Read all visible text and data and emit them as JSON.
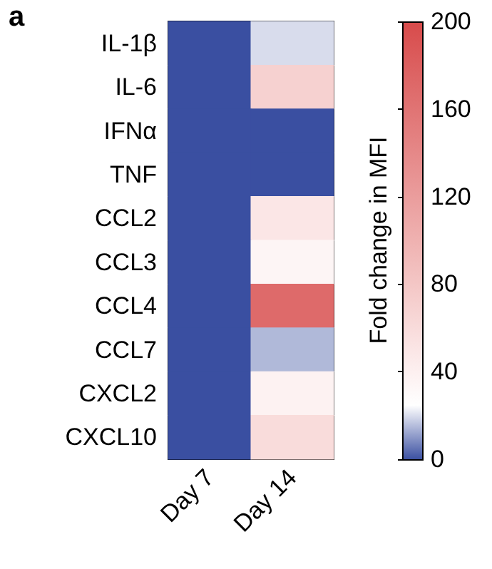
{
  "chart_data": {
    "type": "heatmap",
    "annotations": [
      "a"
    ],
    "clabel": "Fold change in MFI",
    "categories": [
      "Day 7",
      "Day 14"
    ],
    "y_categories": [
      "IL-1β",
      "IL-6",
      "IFNα",
      "TNF",
      "CCL2",
      "CCL3",
      "CCL4",
      "CCL7",
      "CXCL2",
      "CXCL10"
    ],
    "cells": [
      [
        0,
        20
      ],
      [
        0,
        70
      ],
      [
        0,
        0
      ],
      [
        0,
        0
      ],
      [
        0,
        50
      ],
      [
        0,
        35
      ],
      [
        0,
        170
      ],
      [
        0,
        15
      ],
      [
        0,
        38
      ],
      [
        0,
        60
      ]
    ],
    "clim": [
      0,
      200
    ],
    "cticks": [
      0,
      40,
      80,
      120,
      160,
      200
    ]
  }
}
